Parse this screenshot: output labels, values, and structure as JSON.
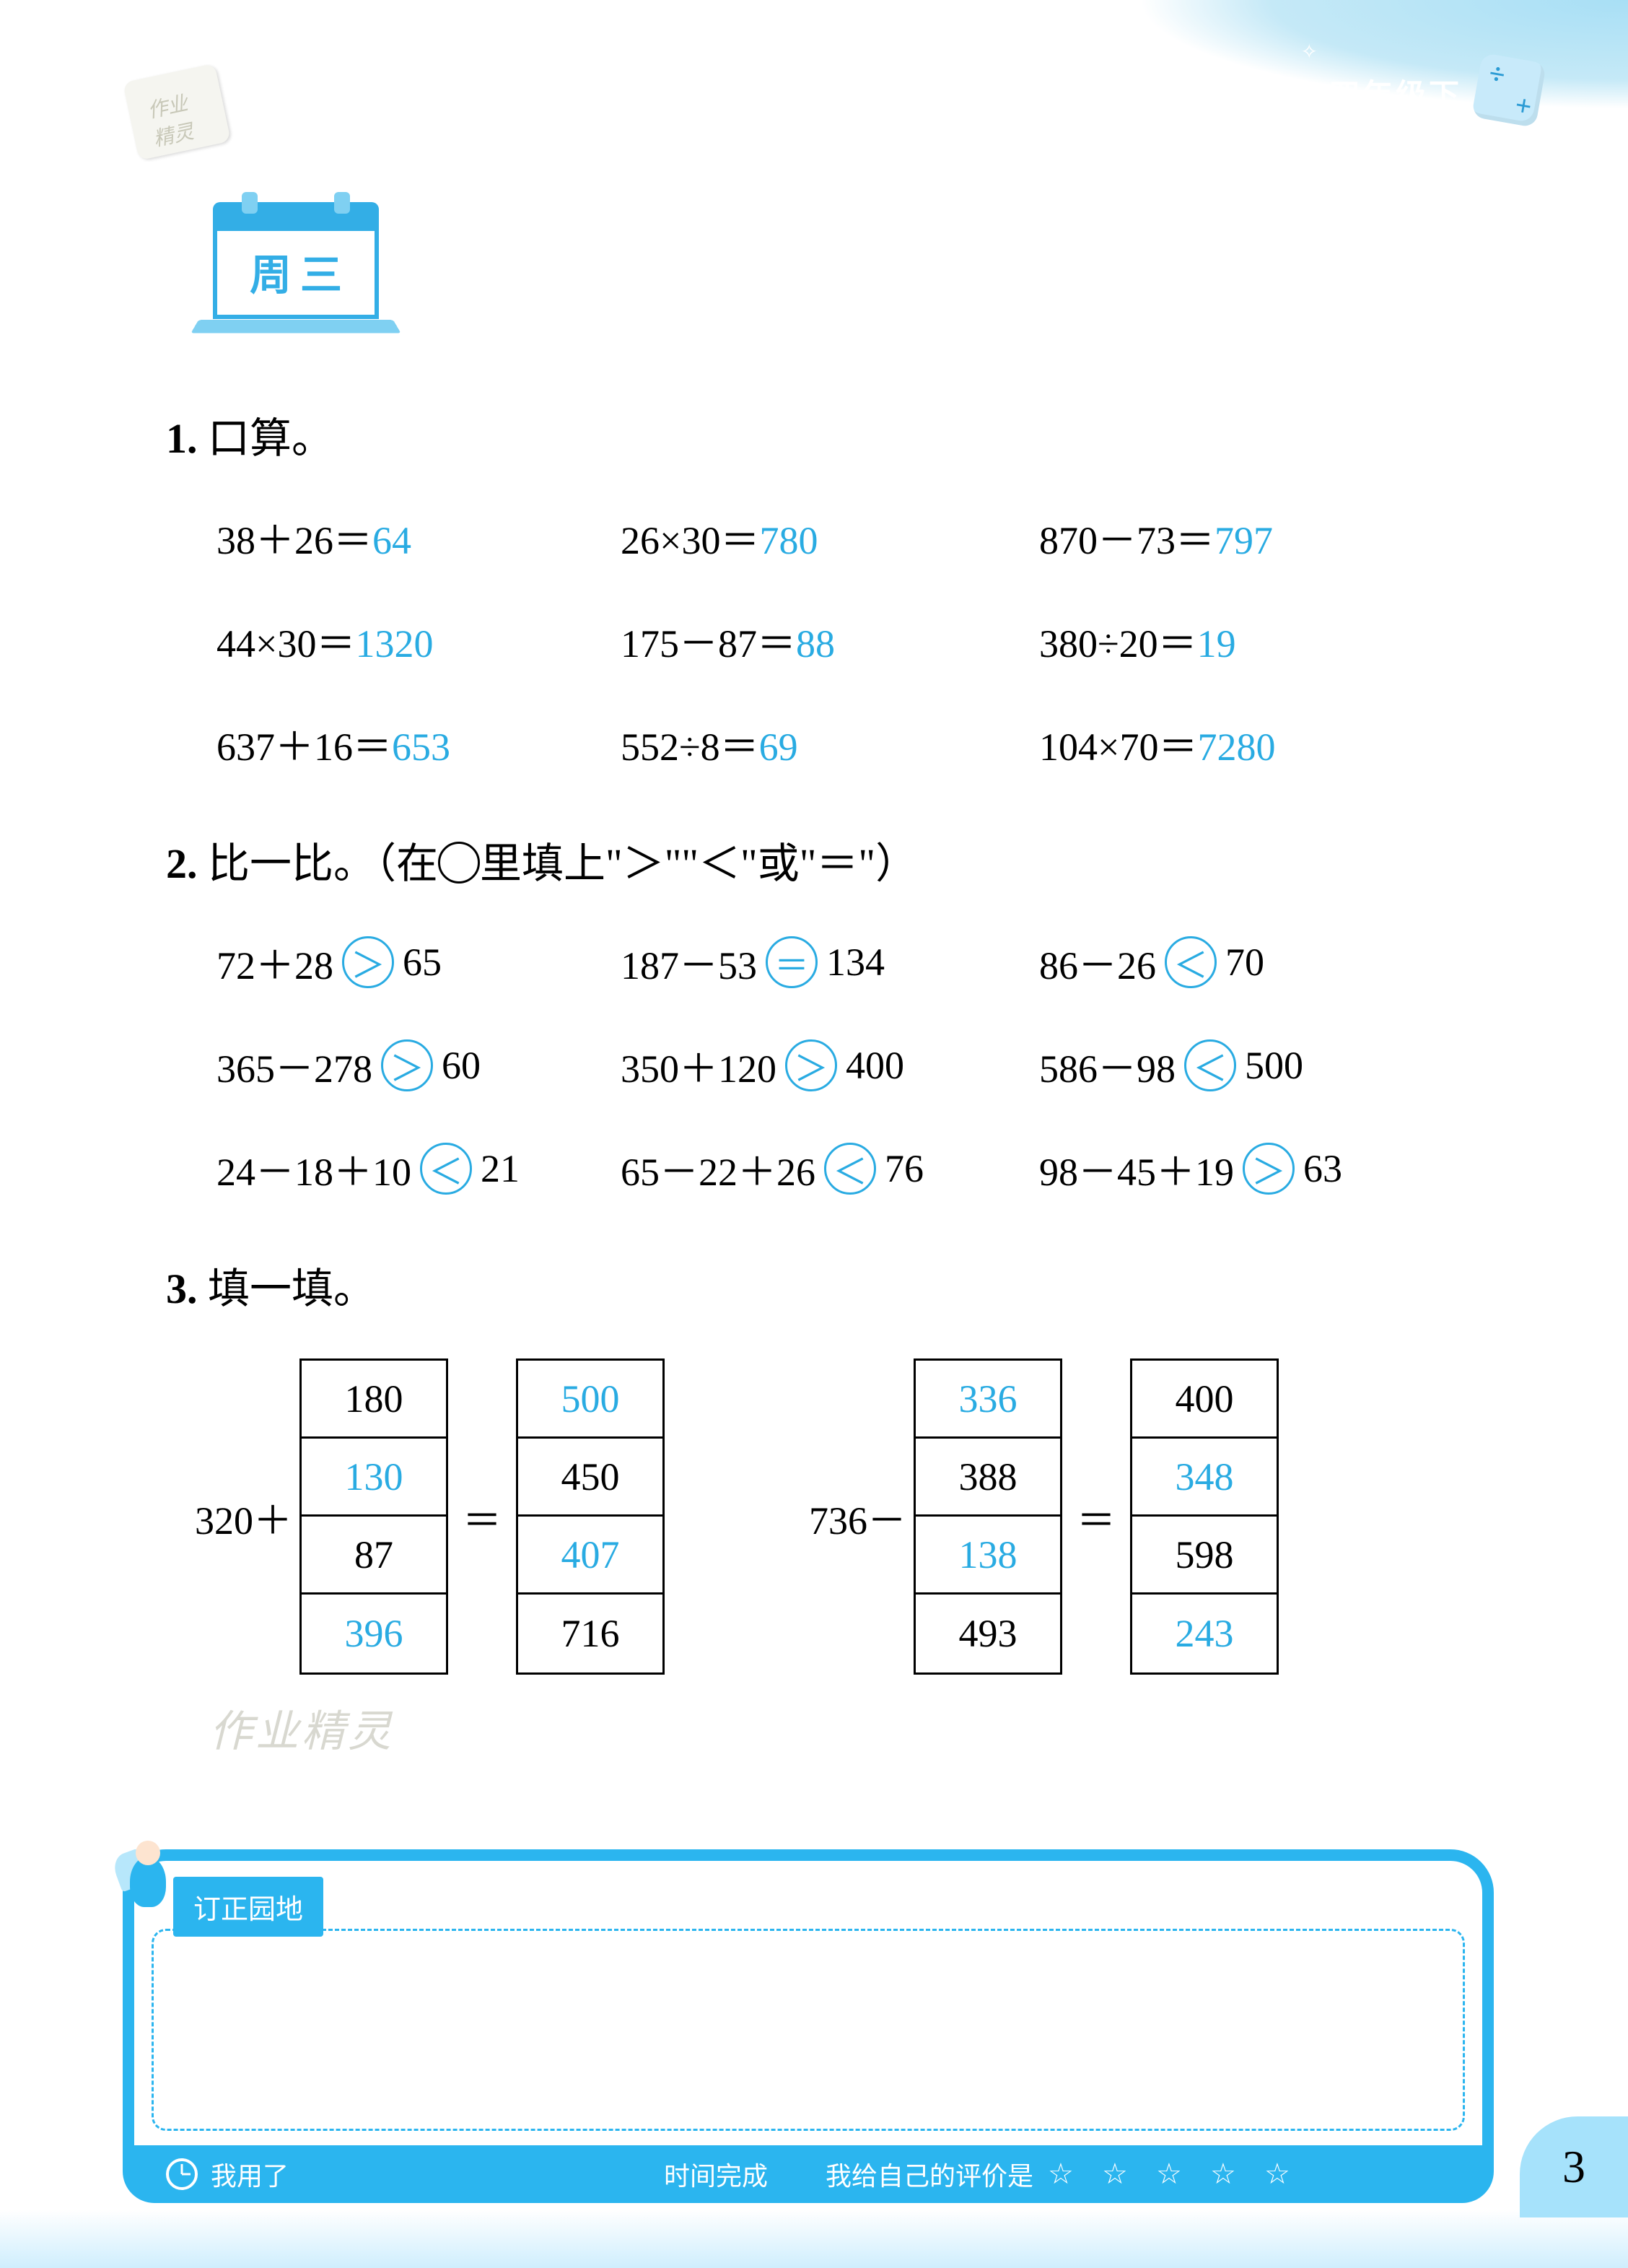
{
  "header": {
    "grade_label": "四年级下",
    "day_label": "周三"
  },
  "section1": {
    "title_num": "1.",
    "title_text": " 口算。",
    "items": [
      {
        "lhs": "38＋26＝",
        "ans": "64"
      },
      {
        "lhs": "26×30＝",
        "ans": "780"
      },
      {
        "lhs": "870－73＝",
        "ans": "797"
      },
      {
        "lhs": "44×30＝",
        "ans": "1320"
      },
      {
        "lhs": "175－87＝",
        "ans": "88"
      },
      {
        "lhs": "380÷20＝",
        "ans": "19"
      },
      {
        "lhs": "637＋16＝",
        "ans": "653"
      },
      {
        "lhs": "552÷8＝",
        "ans": "69"
      },
      {
        "lhs": "104×70＝",
        "ans": "7280"
      }
    ]
  },
  "section2": {
    "title_num": "2.",
    "title_pre": " 比一比。（在",
    "title_post": "里填上\"＞\"\"＜\"或\"＝\"）",
    "items": [
      {
        "l": "72＋28",
        "sym": "＞",
        "r": "65"
      },
      {
        "l": "187－53",
        "sym": "＝",
        "r": "134"
      },
      {
        "l": "86－26",
        "sym": "＜",
        "r": "70"
      },
      {
        "l": "365－278",
        "sym": "＞",
        "r": "60"
      },
      {
        "l": "350＋120",
        "sym": "＞",
        "r": "400"
      },
      {
        "l": "586－98",
        "sym": "＜",
        "r": "500"
      },
      {
        "l": "24－18＋10",
        "sym": "＜",
        "r": "21"
      },
      {
        "l": "65－22＋26",
        "sym": "＜",
        "r": "76"
      },
      {
        "l": "98－45＋19",
        "sym": "＞",
        "r": "63"
      }
    ]
  },
  "section3": {
    "title_num": "3.",
    "title_text": " 填一填。",
    "left": {
      "prefix": "320＋",
      "col1": [
        {
          "v": "180",
          "blue": false
        },
        {
          "v": "130",
          "blue": true
        },
        {
          "v": "87",
          "blue": false
        },
        {
          "v": "396",
          "blue": true
        }
      ],
      "mid": "＝",
      "col2": [
        {
          "v": "500",
          "blue": true
        },
        {
          "v": "450",
          "blue": false
        },
        {
          "v": "407",
          "blue": true
        },
        {
          "v": "716",
          "blue": false
        }
      ]
    },
    "right": {
      "prefix": "736－",
      "col1": [
        {
          "v": "336",
          "blue": true
        },
        {
          "v": "388",
          "blue": false
        },
        {
          "v": "138",
          "blue": true
        },
        {
          "v": "493",
          "blue": false
        }
      ],
      "mid": "＝",
      "col2": [
        {
          "v": "400",
          "blue": false
        },
        {
          "v": "348",
          "blue": true
        },
        {
          "v": "598",
          "blue": false
        },
        {
          "v": "243",
          "blue": true
        }
      ]
    }
  },
  "footer": {
    "tag": "订正园地",
    "time_label": "我用了",
    "time_done": "时间完成",
    "rating_label": "我给自己的评价是",
    "stars": "☆ ☆ ☆ ☆ ☆"
  },
  "watermarks": {
    "w1": "作业精灵",
    "w2": "作业精灵"
  },
  "page_number": "3"
}
